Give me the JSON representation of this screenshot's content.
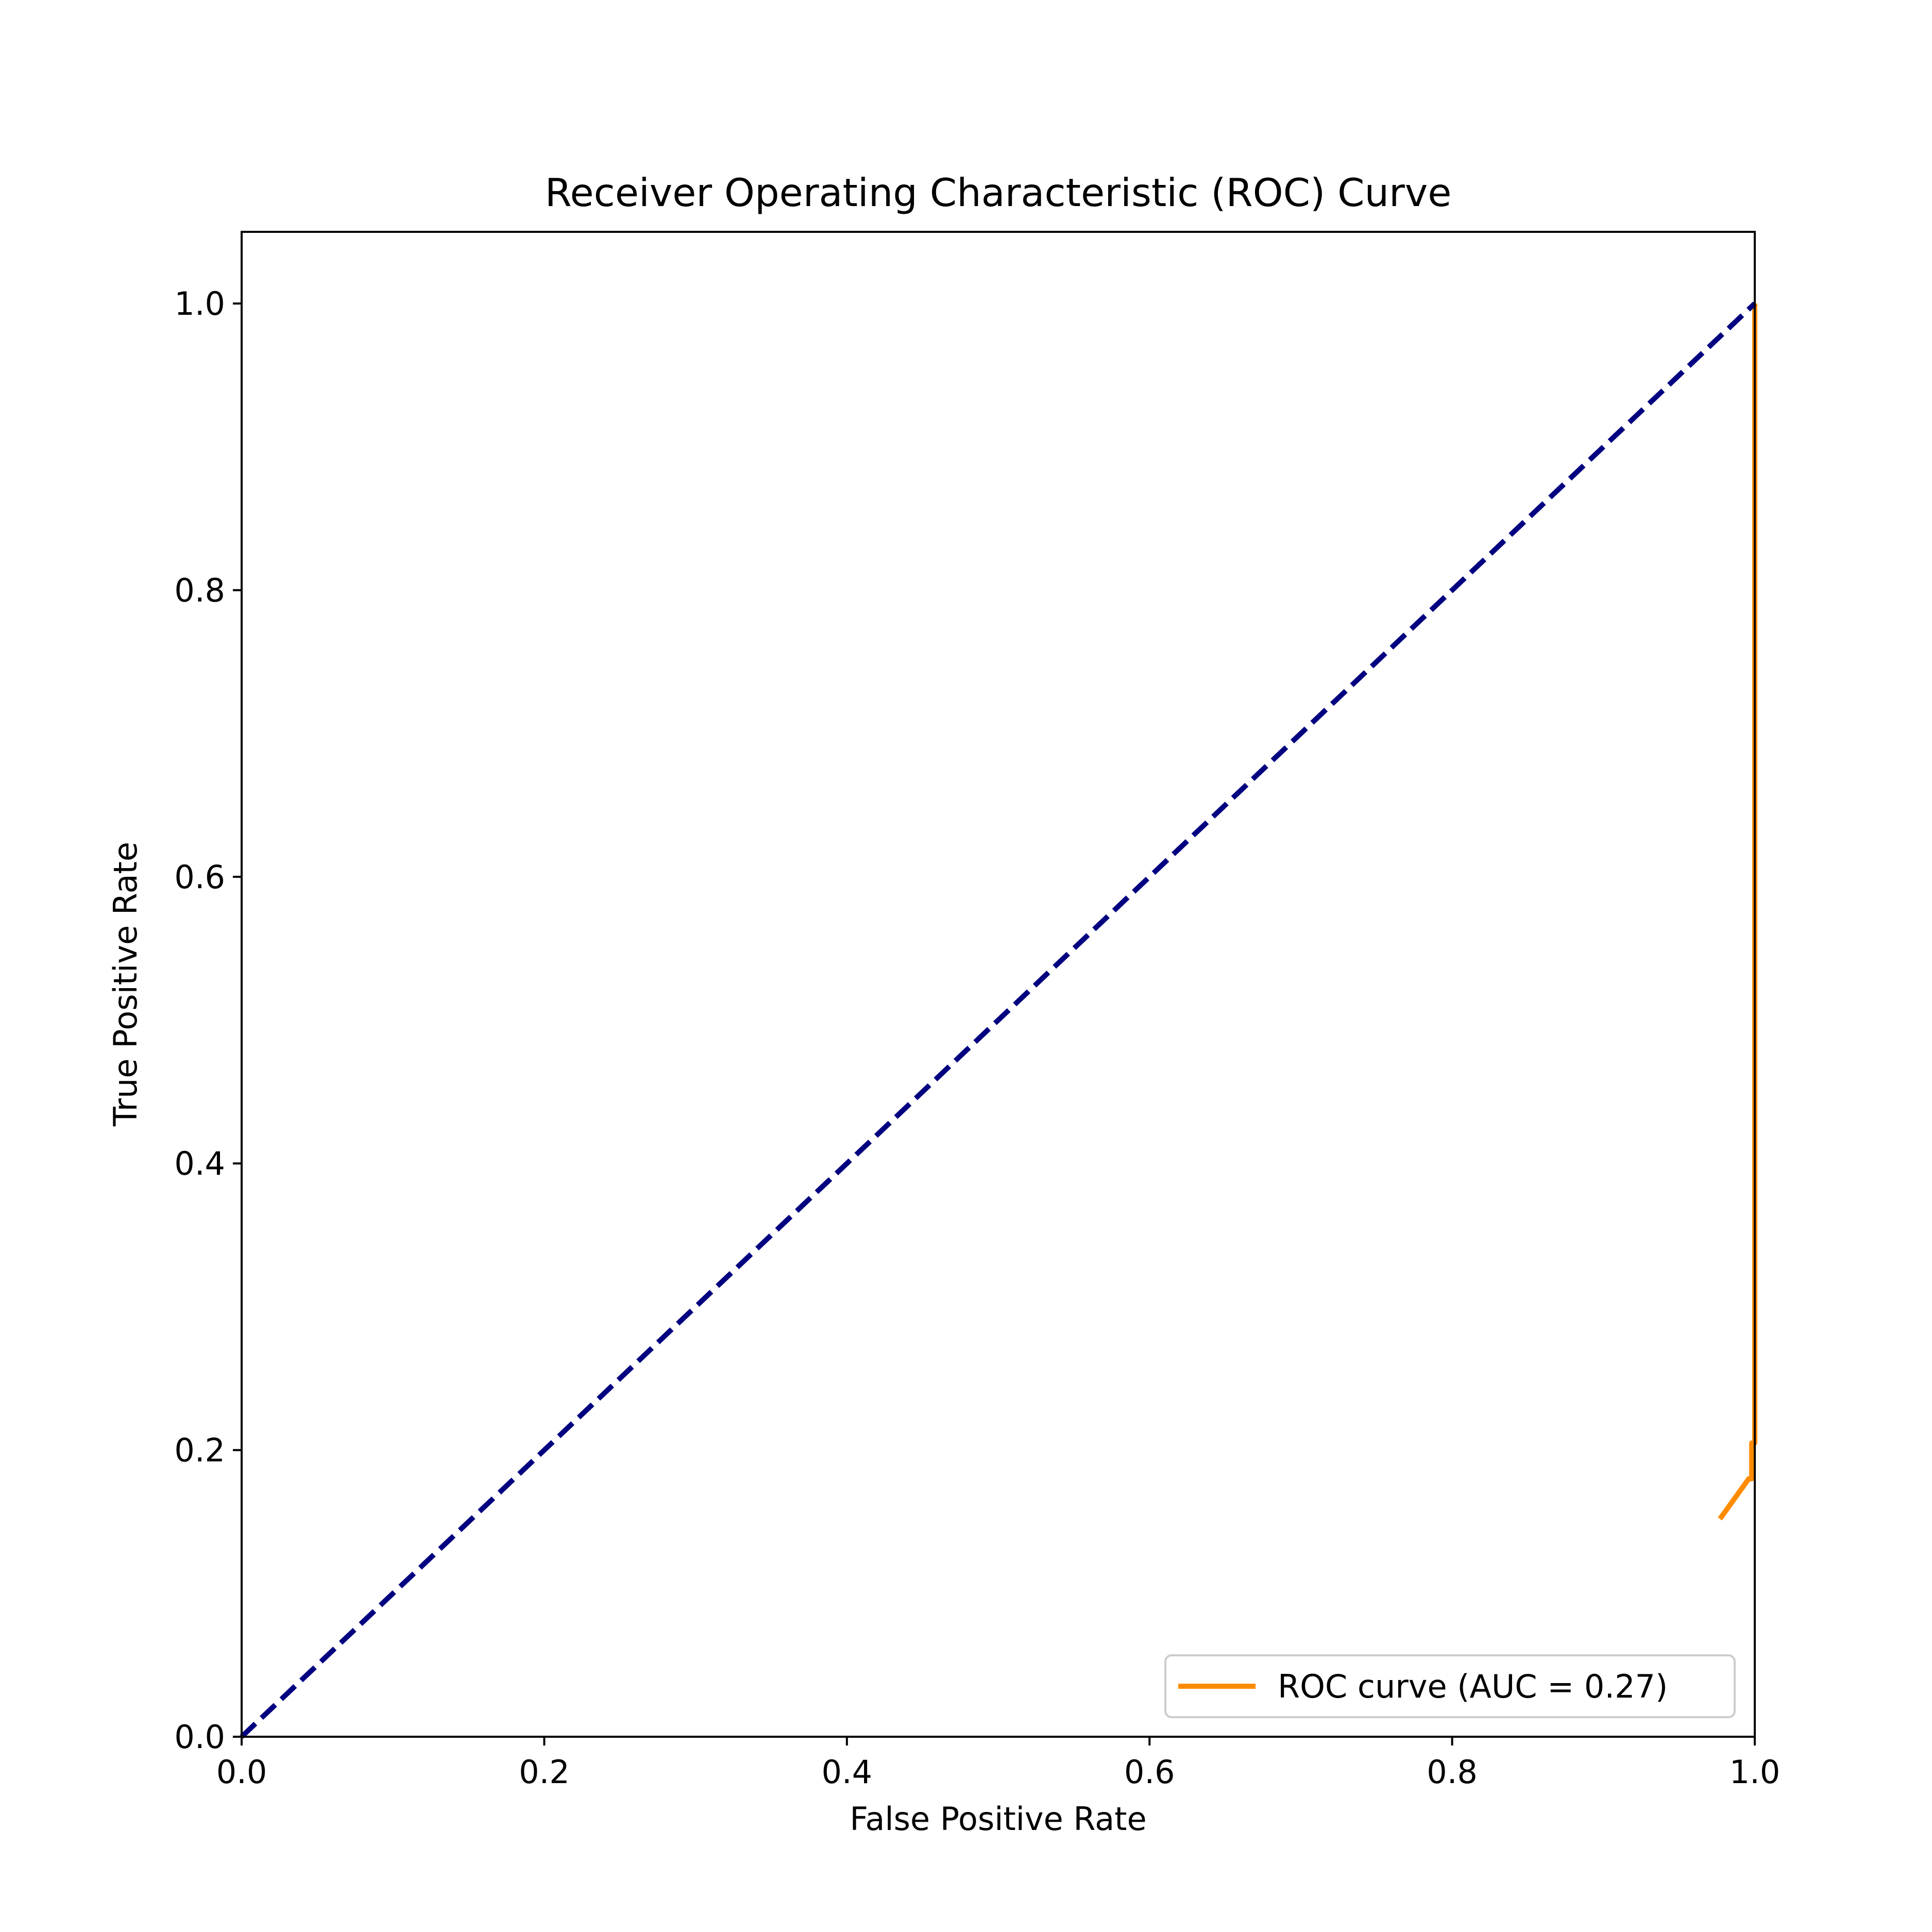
{
  "chart_data": {
    "type": "line",
    "title": "Receiver Operating Characteristic (ROC) Curve",
    "xlabel": "False Positive Rate",
    "ylabel": "True Positive Rate",
    "xlim": [
      0.0,
      1.0
    ],
    "ylim": [
      0.0,
      1.05
    ],
    "xticks": [
      0.0,
      0.2,
      0.4,
      0.6,
      0.8,
      1.0
    ],
    "xtick_labels": [
      "0.0",
      "0.2",
      "0.4",
      "0.6",
      "0.8",
      "1.0"
    ],
    "yticks": [
      0.0,
      0.2,
      0.4,
      0.6,
      0.8,
      1.0
    ],
    "ytick_labels": [
      "0.0",
      "0.2",
      "0.4",
      "0.6",
      "0.8",
      "1.0"
    ],
    "grid": false,
    "legend_position": "lower-right",
    "series": [
      {
        "name": "ROC curve (AUC = 0.27)",
        "color": "#ff8c00",
        "style": "solid",
        "x": [
          0.977,
          0.996,
          0.998,
          0.998,
          1.0,
          1.0
        ],
        "y": [
          0.152,
          0.18,
          0.18,
          0.205,
          0.205,
          1.0
        ]
      },
      {
        "color": "#000080",
        "style": "dashed",
        "x": [
          0.0,
          1.0
        ],
        "y": [
          0.0,
          1.0
        ]
      }
    ]
  }
}
